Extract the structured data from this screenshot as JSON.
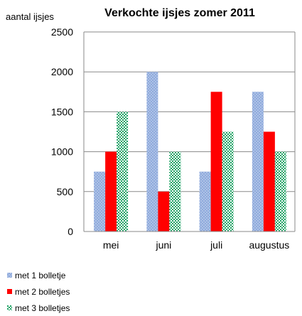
{
  "chart_data": {
    "type": "bar",
    "title": "Verkochte ijsjes zomer 2011",
    "ylabel": "aantal ijsjes",
    "xlabel": "",
    "categories": [
      "mei",
      "juni",
      "juli",
      "augustus"
    ],
    "series": [
      {
        "name": "met 1 bolletje",
        "values": [
          750,
          2000,
          750,
          1750
        ],
        "color": "#8FAADC",
        "pattern": "dots"
      },
      {
        "name": "met 2 bolletjes",
        "values": [
          1000,
          500,
          1750,
          1250
        ],
        "color": "#FF0000",
        "pattern": "solid"
      },
      {
        "name": "met 3 bolletjes",
        "values": [
          1500,
          1000,
          1250,
          1000
        ],
        "color": "#21A366",
        "pattern": "checker"
      }
    ],
    "ylim": [
      0,
      2500
    ],
    "yticks": [
      0,
      500,
      1000,
      1500,
      2000,
      2500
    ],
    "grid": true,
    "legend_position": "bottom-left"
  }
}
